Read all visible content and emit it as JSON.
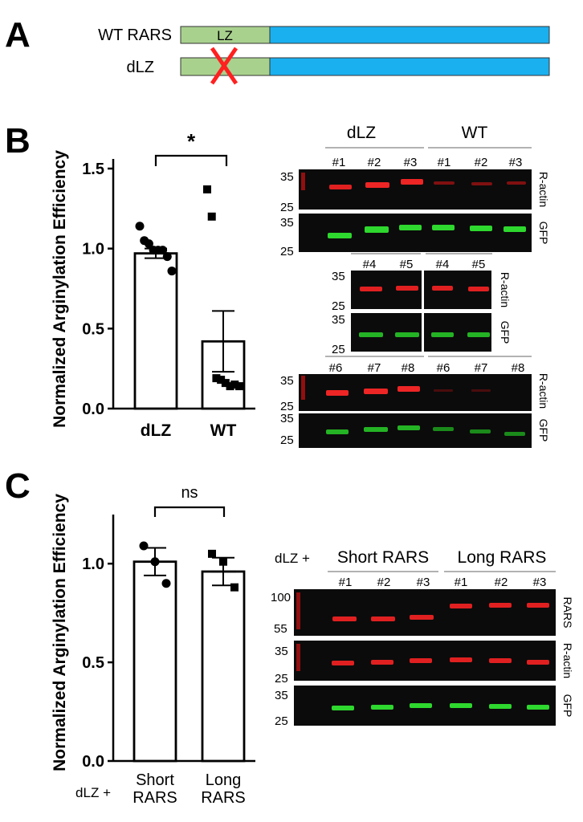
{
  "panel_a": {
    "label": "A",
    "constructs": [
      {
        "name": "WT RARS",
        "domain_label": "LZ",
        "deleted": false
      },
      {
        "name": "dLZ",
        "domain_label": "",
        "deleted": true
      }
    ],
    "colors": {
      "lz": "#a9d18e",
      "body": "#1ab0f0",
      "delete_mark": "#ff2020"
    }
  },
  "panel_b": {
    "label": "B",
    "significance": "*",
    "blot": {
      "group_labels": [
        "dLZ",
        "WT"
      ],
      "lanes_row1": [
        "#1",
        "#2",
        "#3",
        "#1",
        "#2",
        "#3"
      ],
      "lanes_row2": [
        "#4",
        "#5",
        "#4",
        "#5"
      ],
      "lanes_row3": [
        "#6",
        "#7",
        "#8",
        "#6",
        "#7",
        "#8"
      ],
      "markers": [
        "35",
        "25"
      ],
      "band_labels": [
        "R-actin",
        "GFP"
      ]
    }
  },
  "panel_c": {
    "label": "C",
    "significance": "ns",
    "xprefix": "dLZ +",
    "blot": {
      "prefix": "dLZ +",
      "group_labels": [
        "Short RARS",
        "Long RARS"
      ],
      "lanes": [
        "#1",
        "#2",
        "#3",
        "#1",
        "#2",
        "#3"
      ],
      "rars_markers": [
        "100",
        "55"
      ],
      "markers": [
        "35",
        "25"
      ],
      "band_labels": [
        "RARS",
        "R-actin",
        "GFP"
      ]
    }
  },
  "chart_data": [
    {
      "type": "bar",
      "panel": "B",
      "ylabel": "Normalized Arginylation Efficiency",
      "categories": [
        "dLZ",
        "WT"
      ],
      "values": [
        0.97,
        0.42
      ],
      "error": [
        0.03,
        0.19
      ],
      "ylim": [
        0,
        1.5
      ],
      "yticks": [
        "0.0",
        "0.5",
        "1.0",
        "1.5"
      ],
      "points": {
        "dLZ": [
          1.14,
          1.05,
          1.03,
          0.99,
          0.99,
          0.99,
          0.95,
          0.86
        ],
        "WT": [
          1.37,
          1.2,
          0.19,
          0.18,
          0.16,
          0.14,
          0.15,
          0.14
        ]
      },
      "markers": {
        "dLZ": "circle",
        "WT": "square"
      }
    },
    {
      "type": "bar",
      "panel": "C",
      "ylabel": "Normalized Arginylation Efficiency",
      "categories": [
        "Short RARS",
        "Long RARS"
      ],
      "values": [
        1.01,
        0.96
      ],
      "error": [
        0.07,
        0.07
      ],
      "ylim": [
        0,
        1.2
      ],
      "yticks": [
        "0.0",
        "0.5",
        "1.0"
      ],
      "points": {
        "Short RARS": [
          1.09,
          1.01,
          0.9
        ],
        "Long RARS": [
          1.05,
          1.01,
          0.88
        ]
      },
      "markers": {
        "Short RARS": "circle",
        "Long RARS": "square"
      }
    }
  ]
}
